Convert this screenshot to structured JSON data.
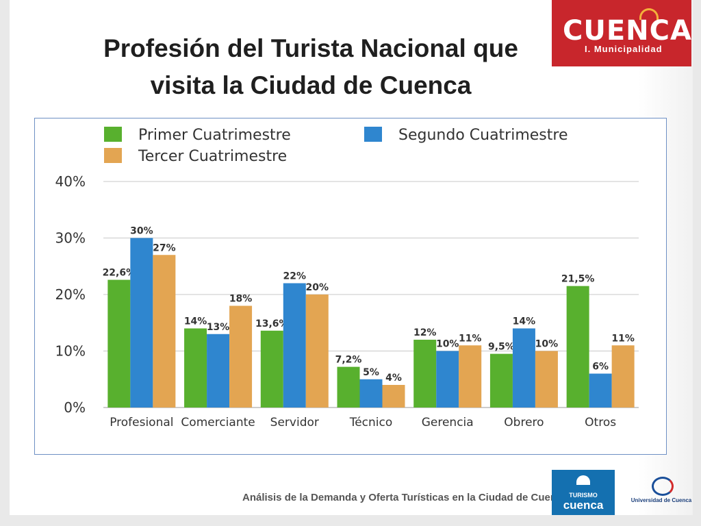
{
  "slide": {
    "title_line1": "Profesión del Turista Nacional que",
    "title_line2": "visita la Ciudad de Cuenca",
    "footer": "Análisis de la Demanda y Oferta Turísticas en la Ciudad de Cuenca"
  },
  "logos": {
    "municipal_word": "CUENCA",
    "municipal_sub": "I. Municipalidad",
    "turismo_line1": "TURISMO",
    "turismo_line2": "cuenca",
    "university": "Universidad de Cuenca"
  },
  "colors": {
    "series1": "#58b02e",
    "series2": "#2f86cf",
    "series3": "#e3a552",
    "grid": "#c8c8c8",
    "text": "#333333"
  },
  "chart_data": {
    "type": "bar",
    "categories": [
      "Profesional",
      "Comerciante",
      "Servidor",
      "Técnico",
      "Gerencia",
      "Obrero",
      "Otros"
    ],
    "series": [
      {
        "name": "Primer Cuatrimestre",
        "values": [
          22.6,
          14,
          13.6,
          7.2,
          12,
          9.5,
          21.5
        ],
        "labels": [
          "22,6%",
          "14%",
          "13,6%",
          "7,2%",
          "12%",
          "9,5%",
          "21,5%"
        ]
      },
      {
        "name": "Segundo Cuatrimestre",
        "values": [
          30,
          13,
          22,
          5,
          10,
          14,
          6
        ],
        "labels": [
          "30%",
          "13%",
          "22%",
          "5%",
          "10%",
          "14%",
          "6%"
        ]
      },
      {
        "name": "Tercer Cuatrimestre",
        "values": [
          27,
          18,
          20,
          4,
          11,
          10,
          11
        ],
        "labels": [
          "27%",
          "18%",
          "20%",
          "4%",
          "11%",
          "10%",
          "11%"
        ]
      }
    ],
    "yticks": [
      0,
      10,
      20,
      30,
      40
    ],
    "ytick_labels": [
      "0%",
      "10%",
      "20%",
      "30%",
      "40%"
    ],
    "ylim": [
      0,
      40
    ],
    "grid": true,
    "legend_position": "top"
  }
}
